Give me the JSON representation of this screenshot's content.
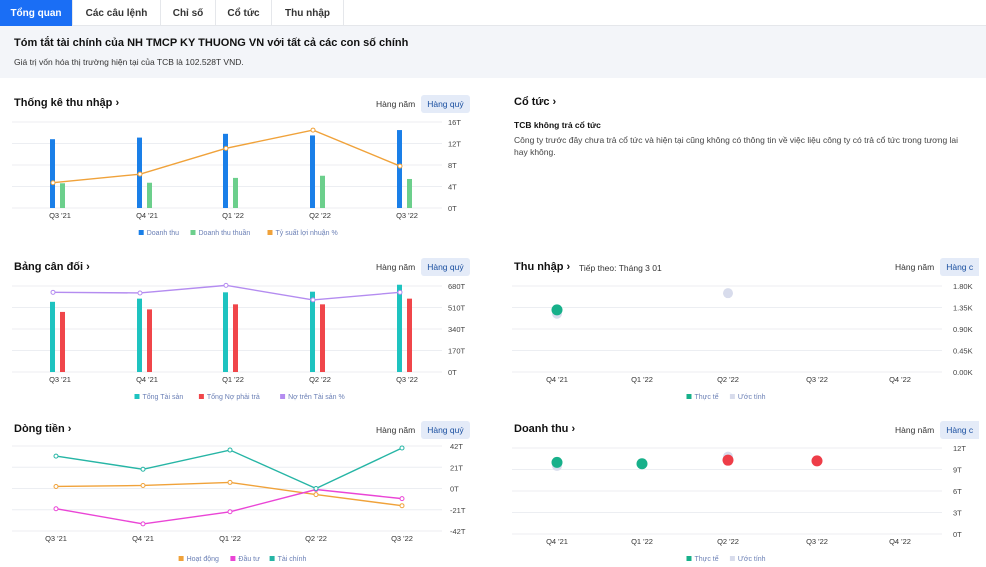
{
  "tabs": [
    {
      "label": "Tổng quan",
      "active": true
    },
    {
      "label": "Các câu lệnh",
      "active": false
    },
    {
      "label": "Chỉ số",
      "active": false
    },
    {
      "label": "Cổ tức",
      "active": false
    },
    {
      "label": "Thu nhập",
      "active": false
    }
  ],
  "summary": {
    "title": "Tóm tắt tài chính của NH TMCP KY THUONG VN với tất cả các con số chính",
    "subtitle": "Giá trị vốn hóa thị trường hiện tại của TCB là 102.528T VND."
  },
  "toggle": {
    "annual": "Hàng năm",
    "quarterly": "Hàng quý",
    "quarterly_cut": "Hàng c"
  },
  "dividend": {
    "title": "Cổ tức",
    "heading": "TCB không trả cổ tức",
    "body": "Công ty trước đây chưa trả cổ tức và hiện tại cũng không có thông tin về việc liệu công ty có trả cổ tức trong tương lai hay không."
  },
  "earnings_next": "Tiếp theo: Tháng 3 01",
  "colors": {
    "blue": "#1a7fe8",
    "green": "#6ccf8c",
    "orange": "#f0a23a",
    "teal": "#1ec3c0",
    "red": "#f0464a",
    "purple": "#b48cf0",
    "pink": "#ea45d6",
    "tealdark": "#26b5a5",
    "actual": "#17b08a",
    "estimate": "#d8dcec",
    "miss": "#ee3d48"
  },
  "chart_data": [
    {
      "type": "bar",
      "title": "Thống kê thu nhập",
      "categories": [
        "Q3 '21",
        "Q4 '21",
        "Q1 '22",
        "Q2 '22",
        "Q3 '22"
      ],
      "yticks": [
        "16T",
        "12T",
        "8T",
        "4T",
        "0T"
      ],
      "ylim": [
        0,
        16
      ],
      "series": [
        {
          "name": "Doanh thu",
          "kind": "bar",
          "color": "blue",
          "values": [
            12.8,
            13.1,
            13.8,
            13.5,
            14.5
          ]
        },
        {
          "name": "Doanh thu thuần",
          "kind": "bar",
          "color": "green",
          "values": [
            4.6,
            4.7,
            5.6,
            6.0,
            5.4
          ]
        },
        {
          "name": "Tỷ suất lợi nhuận %",
          "kind": "line",
          "color": "orange",
          "values": [
            4.7,
            6.3,
            11.1,
            14.5,
            7.8
          ]
        }
      ]
    },
    {
      "type": "bar",
      "title": "Bảng cân đối",
      "categories": [
        "Q3 '21",
        "Q4 '21",
        "Q1 '22",
        "Q2 '22",
        "Q3 '22"
      ],
      "yticks": [
        "680T",
        "510T",
        "340T",
        "170T",
        "0T"
      ],
      "ylim": [
        0,
        680
      ],
      "series": [
        {
          "name": "Tổng Tài sản",
          "kind": "bar",
          "color": "teal",
          "values": [
            555,
            580,
            630,
            635,
            690
          ]
        },
        {
          "name": "Tổng Nợ phải trả",
          "kind": "bar",
          "color": "red",
          "values": [
            475,
            495,
            535,
            535,
            580
          ]
        },
        {
          "name": "Nợ trên Tài sản %",
          "kind": "line",
          "color": "purple",
          "values": [
            630,
            625,
            685,
            570,
            630
          ]
        }
      ]
    },
    {
      "type": "line",
      "title": "Dòng tiền",
      "categories": [
        "Q3 '21",
        "Q4 '21",
        "Q1 '22",
        "Q2 '22",
        "Q3 '22"
      ],
      "yticks": [
        "42T",
        "21T",
        "0T",
        "-21T",
        "-42T"
      ],
      "ylim": [
        -42,
        42
      ],
      "series": [
        {
          "name": "Hoạt động",
          "color": "orange",
          "values": [
            2,
            3,
            6,
            -6,
            -17
          ]
        },
        {
          "name": "Đầu tư",
          "color": "pink",
          "values": [
            -20,
            -35,
            -23,
            -1,
            -10
          ]
        },
        {
          "name": "Tài chính",
          "color": "tealdark",
          "values": [
            32,
            19,
            38,
            0,
            40
          ]
        }
      ]
    },
    {
      "type": "scatter",
      "title": "Thu nhập",
      "categories": [
        "Q4 '21",
        "Q1 '22",
        "Q2 '22",
        "Q3 '22",
        "Q4 '22"
      ],
      "yticks": [
        "1.80K",
        "1.35K",
        "0.90K",
        "0.45K",
        "0.00K"
      ],
      "ylim": [
        0,
        1.8
      ],
      "legend": [
        "Thực tế",
        "Ước tính"
      ],
      "actual": [
        1.3,
        null,
        null,
        null,
        null
      ],
      "estimate": [
        1.22,
        null,
        1.65,
        null,
        null
      ]
    },
    {
      "type": "scatter",
      "title": "Doanh thu",
      "categories": [
        "Q4 '21",
        "Q1 '22",
        "Q2 '22",
        "Q3 '22",
        "Q4 '22"
      ],
      "yticks": [
        "12T",
        "9T",
        "6T",
        "3T",
        "0T"
      ],
      "ylim": [
        0,
        12
      ],
      "legend": [
        "Thực tế",
        "Ước tính"
      ],
      "actual": [
        10.0,
        9.8,
        10.3,
        10.2,
        null
      ],
      "estimate": [
        9.5,
        null,
        10.8,
        null,
        null
      ],
      "beat": [
        true,
        true,
        false,
        false,
        null
      ]
    }
  ]
}
